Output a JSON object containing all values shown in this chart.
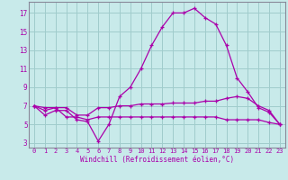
{
  "xlabel": "Windchill (Refroidissement éolien,°C)",
  "background_color": "#c8eaea",
  "grid_color": "#a0cccc",
  "line_color": "#aa00aa",
  "x_hours": [
    0,
    1,
    2,
    3,
    4,
    5,
    6,
    7,
    8,
    9,
    10,
    11,
    12,
    13,
    14,
    15,
    16,
    17,
    18,
    19,
    20,
    21,
    22,
    23
  ],
  "line_curve": [
    7.0,
    6.0,
    6.5,
    6.5,
    5.5,
    5.3,
    3.2,
    5.0,
    8.0,
    9.0,
    11.0,
    13.5,
    15.5,
    17.0,
    17.0,
    17.5,
    16.5,
    15.8,
    13.5,
    10.0,
    8.5,
    6.8,
    6.3,
    5.0
  ],
  "line_upper": [
    7.0,
    6.8,
    6.8,
    6.8,
    6.0,
    6.0,
    6.8,
    6.8,
    7.0,
    7.0,
    7.2,
    7.2,
    7.2,
    7.3,
    7.3,
    7.3,
    7.5,
    7.5,
    7.8,
    8.0,
    7.8,
    7.0,
    6.5,
    5.0
  ],
  "line_lower": [
    7.0,
    6.5,
    6.8,
    5.8,
    5.8,
    5.5,
    5.8,
    5.8,
    5.8,
    5.8,
    5.8,
    5.8,
    5.8,
    5.8,
    5.8,
    5.8,
    5.8,
    5.8,
    5.5,
    5.5,
    5.5,
    5.5,
    5.2,
    5.0
  ],
  "ylim": [
    2.5,
    18.2
  ],
  "xlim": [
    -0.5,
    23.5
  ],
  "yticks": [
    3,
    5,
    7,
    9,
    11,
    13,
    15,
    17
  ],
  "xticks": [
    0,
    1,
    2,
    3,
    4,
    5,
    6,
    7,
    8,
    9,
    10,
    11,
    12,
    13,
    14,
    15,
    16,
    17,
    18,
    19,
    20,
    21,
    22,
    23
  ]
}
